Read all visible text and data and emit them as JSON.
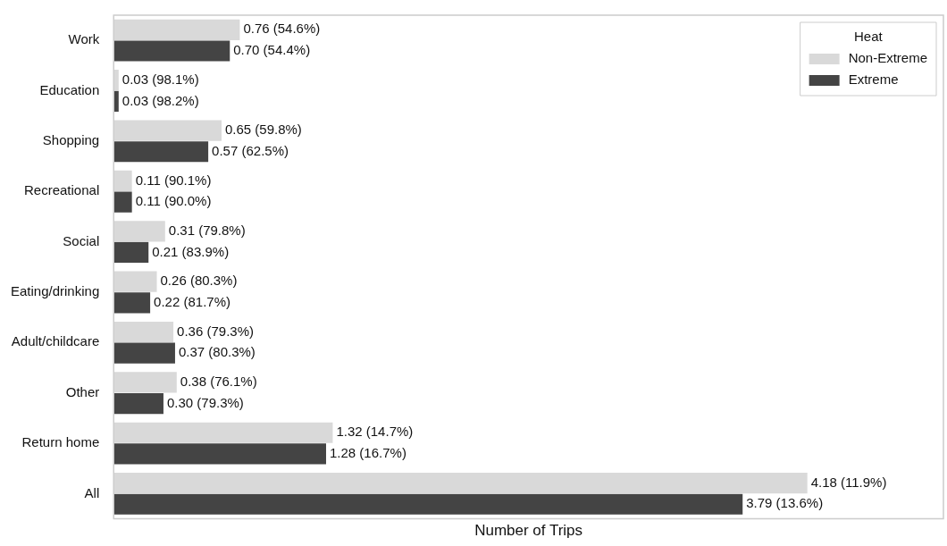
{
  "chart_data": {
    "type": "bar",
    "orientation": "horizontal",
    "xlabel": "Number of Trips",
    "legend": "top right",
    "legend_title": "Heat",
    "grid": false,
    "tick_labels": "y",
    "categories": [
      "Work",
      "Education",
      "Shopping",
      "Recreational",
      "Social",
      "Eating/drinking",
      "Adult/childcare",
      "Other",
      "Return home",
      "All"
    ],
    "series": [
      {
        "name": "Non-Extreme",
        "color": "#d9d9d9",
        "values": [
          0.76,
          0.03,
          0.65,
          0.11,
          0.31,
          0.26,
          0.36,
          0.38,
          1.32,
          4.18
        ],
        "value_labels": [
          "0.76 (54.6%)",
          "0.03 (98.1%)",
          "0.65 (59.8%)",
          "0.11 (90.1%)",
          "0.31 (79.8%)",
          "0.26 (80.3%)",
          "0.36 (79.3%)",
          "0.38 (76.1%)",
          "1.32 (14.7%)",
          "4.18 (11.9%)"
        ]
      },
      {
        "name": "Extreme",
        "color": "#444444",
        "values": [
          0.7,
          0.03,
          0.57,
          0.11,
          0.21,
          0.22,
          0.37,
          0.3,
          1.28,
          3.79
        ],
        "value_labels": [
          "0.70 (54.4%)",
          "0.03 (98.2%)",
          "0.57 (62.5%)",
          "0.11 (90.0%)",
          "0.21 (83.9%)",
          "0.22 (81.7%)",
          "0.37 (80.3%)",
          "0.30 (79.3%)",
          "1.28 (16.7%)",
          "3.79 (13.6%)"
        ]
      }
    ]
  }
}
